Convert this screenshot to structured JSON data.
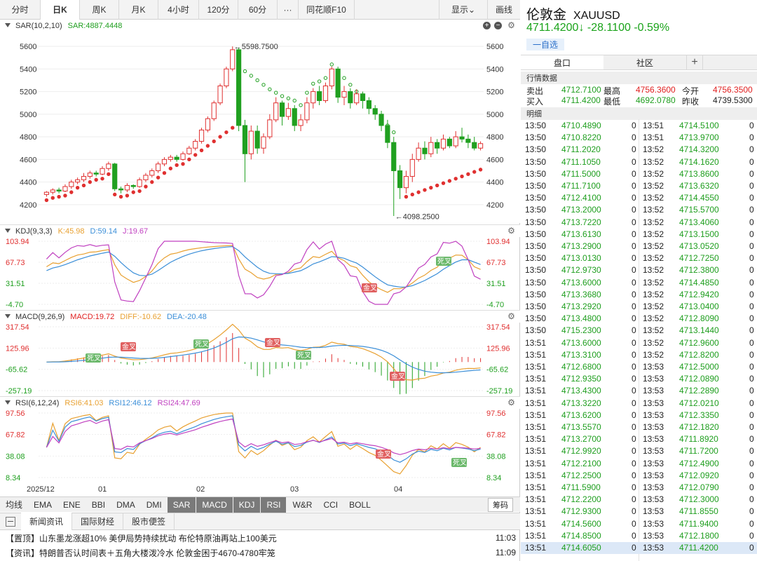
{
  "toolbar": {
    "tabs": [
      "分时",
      "日K",
      "周K",
      "月K",
      "4小时",
      "120分",
      "60分",
      "···",
      "同花顺F10"
    ],
    "active": "日K",
    "display_label": "显示",
    "draw_label": "画线"
  },
  "sar_panel": {
    "name": "SAR(10,2,10)",
    "value": "SAR:4887.4448",
    "y_ticks": [
      "5600",
      "5400",
      "5200",
      "5000",
      "4800",
      "4600",
      "4400",
      "4200"
    ],
    "high_label": "5598.7500",
    "low_label": "4098.2500"
  },
  "kdj_panel": {
    "name": "KDJ(9,3,3)",
    "k": "K:45.98",
    "d": "D:59.14",
    "j": "J:19.67",
    "y_ticks": [
      "103.94",
      "67.73",
      "31.51",
      "-4.70"
    ],
    "markers": [
      "死叉",
      "金叉"
    ]
  },
  "macd_panel": {
    "name": "MACD(9,26,9)",
    "macd": "MACD:19.72",
    "diff": "DIFF:-10.62",
    "dea": "DEA:-20.48",
    "y_ticks": [
      "317.54",
      "125.96",
      "-65.62",
      "-257.19"
    ],
    "markers": [
      "金叉",
      "死叉"
    ]
  },
  "rsi_panel": {
    "name": "RSI(6,12,24)",
    "rsi6": "RSI6:41.03",
    "rsi12": "RSI12:46.12",
    "rsi24": "RSI24:47.69",
    "y_ticks": [
      "97.56",
      "67.82",
      "38.08",
      "8.34"
    ],
    "markers": [
      "金叉",
      "死叉"
    ]
  },
  "x_axis": [
    "2025/12",
    "01",
    "02",
    "03",
    "04"
  ],
  "indicators": {
    "items": [
      "均线",
      "EMA",
      "ENE",
      "BBI",
      "DMA",
      "DMI",
      "SAR",
      "MACD",
      "KDJ",
      "RSI",
      "W&R",
      "CCI",
      "BOLL"
    ],
    "active": [
      "SAR",
      "MACD",
      "KDJ",
      "RSI"
    ],
    "chip": "筹码"
  },
  "news": {
    "tabs": [
      "新闻资讯",
      "国际财经",
      "股市便签"
    ],
    "items": [
      {
        "tag": "【置顶】",
        "text": "山东墨龙涨超10% 美伊局势持续扰动 布伦特原油再站上100美元",
        "time": "11:03"
      },
      {
        "tag": "【资讯】",
        "text": "特朗普否认时间表＋五角大楼泼冷水 伦敦金困于4670-4780牢笼",
        "time": "11:09"
      }
    ]
  },
  "instrument": {
    "name": "伦敦金",
    "symbol": "XAUUSD",
    "price": "4711.4200",
    "arrow": "↓",
    "change": "-28.1100",
    "change_pct": "-0.59%",
    "add_label": "一自选"
  },
  "right_tabs": [
    "盘口",
    "社区"
  ],
  "market": {
    "title": "行情数据",
    "rows": [
      {
        "l1": "卖出",
        "v1": "4712.7100",
        "l2": "最高",
        "v2": "4756.3600",
        "l3": "今开",
        "v3": "4756.3500"
      },
      {
        "l1": "买入",
        "v1": "4711.4200",
        "l2": "最低",
        "v2": "4692.0780",
        "l3": "昨收",
        "v3": "4739.5300"
      }
    ]
  },
  "ticks": {
    "title": "明细",
    "left": [
      [
        "13:50",
        "4710.4890",
        "0"
      ],
      [
        "13:50",
        "4710.8220",
        "0"
      ],
      [
        "13:50",
        "4711.2020",
        "0"
      ],
      [
        "13:50",
        "4711.1050",
        "0"
      ],
      [
        "13:50",
        "4711.5000",
        "0"
      ],
      [
        "13:50",
        "4711.7100",
        "0"
      ],
      [
        "13:50",
        "4712.4100",
        "0"
      ],
      [
        "13:50",
        "4713.2000",
        "0"
      ],
      [
        "13:50",
        "4713.7220",
        "0"
      ],
      [
        "13:50",
        "4713.6130",
        "0"
      ],
      [
        "13:50",
        "4713.2900",
        "0"
      ],
      [
        "13:50",
        "4713.0130",
        "0"
      ],
      [
        "13:50",
        "4712.9730",
        "0"
      ],
      [
        "13:50",
        "4713.6000",
        "0"
      ],
      [
        "13:50",
        "4713.3680",
        "0"
      ],
      [
        "13:50",
        "4713.2920",
        "0"
      ],
      [
        "13:50",
        "4713.4800",
        "0"
      ],
      [
        "13:50",
        "4715.2300",
        "0"
      ],
      [
        "13:51",
        "4713.6000",
        "0"
      ],
      [
        "13:51",
        "4713.3100",
        "0"
      ],
      [
        "13:51",
        "4712.6800",
        "0"
      ],
      [
        "13:51",
        "4712.9350",
        "0"
      ],
      [
        "13:51",
        "4713.4300",
        "0"
      ],
      [
        "13:51",
        "4713.3220",
        "0"
      ],
      [
        "13:51",
        "4713.6200",
        "0"
      ],
      [
        "13:51",
        "4713.5570",
        "0"
      ],
      [
        "13:51",
        "4713.2700",
        "0"
      ],
      [
        "13:51",
        "4712.9920",
        "0"
      ],
      [
        "13:51",
        "4712.2100",
        "0"
      ],
      [
        "13:51",
        "4712.2500",
        "0"
      ],
      [
        "13:51",
        "4711.5900",
        "0"
      ],
      [
        "13:51",
        "4712.2200",
        "0"
      ],
      [
        "13:51",
        "4712.9300",
        "0"
      ],
      [
        "13:51",
        "4714.5600",
        "0"
      ],
      [
        "13:51",
        "4714.8500",
        "0"
      ],
      [
        "13:51",
        "4714.6050",
        "0"
      ]
    ],
    "right": [
      [
        "13:51",
        "4714.5100",
        "0"
      ],
      [
        "13:51",
        "4713.9700",
        "0"
      ],
      [
        "13:52",
        "4714.3200",
        "0"
      ],
      [
        "13:52",
        "4714.1620",
        "0"
      ],
      [
        "13:52",
        "4713.8600",
        "0"
      ],
      [
        "13:52",
        "4713.6320",
        "0"
      ],
      [
        "13:52",
        "4714.4550",
        "0"
      ],
      [
        "13:52",
        "4715.5700",
        "0"
      ],
      [
        "13:52",
        "4713.4060",
        "0"
      ],
      [
        "13:52",
        "4713.1500",
        "0"
      ],
      [
        "13:52",
        "4713.0520",
        "0"
      ],
      [
        "13:52",
        "4712.7250",
        "0"
      ],
      [
        "13:52",
        "4712.3800",
        "0"
      ],
      [
        "13:52",
        "4714.4850",
        "0"
      ],
      [
        "13:52",
        "4712.9420",
        "0"
      ],
      [
        "13:52",
        "4713.0400",
        "0"
      ],
      [
        "13:52",
        "4712.8090",
        "0"
      ],
      [
        "13:52",
        "4713.1440",
        "0"
      ],
      [
        "13:52",
        "4712.9600",
        "0"
      ],
      [
        "13:52",
        "4712.8200",
        "0"
      ],
      [
        "13:53",
        "4712.5000",
        "0"
      ],
      [
        "13:53",
        "4712.0890",
        "0"
      ],
      [
        "13:53",
        "4712.2890",
        "0"
      ],
      [
        "13:53",
        "4712.0210",
        "0"
      ],
      [
        "13:53",
        "4712.3350",
        "0"
      ],
      [
        "13:53",
        "4712.1820",
        "0"
      ],
      [
        "13:53",
        "4711.8920",
        "0"
      ],
      [
        "13:53",
        "4711.7200",
        "0"
      ],
      [
        "13:53",
        "4712.4900",
        "0"
      ],
      [
        "13:53",
        "4712.0920",
        "0"
      ],
      [
        "13:53",
        "4712.0790",
        "0"
      ],
      [
        "13:53",
        "4712.3000",
        "0"
      ],
      [
        "13:53",
        "4711.8550",
        "0"
      ],
      [
        "13:53",
        "4711.9400",
        "0"
      ],
      [
        "13:53",
        "4712.1800",
        "0"
      ],
      [
        "13:53",
        "4711.4200",
        "0"
      ]
    ]
  },
  "chart_data": {
    "type": "candlestick",
    "y_range": [
      4100,
      5650
    ],
    "candles": [
      [
        4290,
        4310,
        4270,
        4320
      ],
      [
        4310,
        4330,
        4290,
        4345
      ],
      [
        4330,
        4320,
        4300,
        4350
      ],
      [
        4320,
        4360,
        4310,
        4380
      ],
      [
        4360,
        4400,
        4340,
        4420
      ],
      [
        4400,
        4420,
        4380,
        4440
      ],
      [
        4420,
        4450,
        4400,
        4480
      ],
      [
        4450,
        4480,
        4430,
        4500
      ],
      [
        4480,
        4470,
        4450,
        4500
      ],
      [
        4470,
        4520,
        4460,
        4540
      ],
      [
        4520,
        4560,
        4500,
        4580
      ],
      [
        4560,
        4340,
        4320,
        4570
      ],
      [
        4340,
        4330,
        4300,
        4360
      ],
      [
        4330,
        4370,
        4310,
        4390
      ],
      [
        4370,
        4360,
        4340,
        4380
      ],
      [
        4360,
        4420,
        4350,
        4440
      ],
      [
        4420,
        4460,
        4400,
        4480
      ],
      [
        4460,
        4500,
        4440,
        4520
      ],
      [
        4500,
        4560,
        4480,
        4580
      ],
      [
        4560,
        4600,
        4540,
        4620
      ],
      [
        4600,
        4620,
        4580,
        4640
      ],
      [
        4620,
        4600,
        4580,
        4640
      ],
      [
        4600,
        4650,
        4590,
        4670
      ],
      [
        4650,
        4700,
        4640,
        4720
      ],
      [
        4700,
        4760,
        4680,
        4780
      ],
      [
        4760,
        4860,
        4740,
        4880
      ],
      [
        4860,
        4960,
        4840,
        4980
      ],
      [
        4960,
        5100,
        4940,
        5120
      ],
      [
        5100,
        5250,
        5080,
        5270
      ],
      [
        5250,
        5400,
        5230,
        5420
      ],
      [
        5400,
        5570,
        5380,
        5599
      ],
      [
        5570,
        4900,
        4850,
        5590
      ],
      [
        4900,
        4650,
        4400,
        4950
      ],
      [
        4650,
        4850,
        4600,
        4900
      ],
      [
        4850,
        4700,
        4650,
        4900
      ],
      [
        4700,
        4800,
        4650,
        4830
      ],
      [
        4800,
        4950,
        4780,
        5000
      ],
      [
        4950,
        5100,
        4930,
        5150
      ],
      [
        5100,
        4980,
        4900,
        5120
      ],
      [
        4980,
        5050,
        4950,
        5100
      ],
      [
        5050,
        4900,
        4850,
        5080
      ],
      [
        4900,
        4950,
        4850,
        5000
      ],
      [
        4950,
        5100,
        4920,
        5150
      ],
      [
        5100,
        5200,
        5050,
        5230
      ],
      [
        5200,
        5120,
        5080,
        5250
      ],
      [
        5120,
        5250,
        5100,
        5280
      ],
      [
        5250,
        5400,
        5220,
        5420
      ],
      [
        5400,
        5150,
        5100,
        5420
      ],
      [
        5150,
        5200,
        5080,
        5250
      ],
      [
        5200,
        5100,
        5050,
        5230
      ],
      [
        5100,
        5180,
        5080,
        5220
      ],
      [
        5180,
        5120,
        5050,
        5200
      ],
      [
        5120,
        5050,
        5000,
        5150
      ],
      [
        5050,
        5000,
        4950,
        5080
      ],
      [
        5000,
        4900,
        4850,
        5030
      ],
      [
        4900,
        4750,
        4700,
        4950
      ],
      [
        4750,
        4500,
        4100,
        4800
      ],
      [
        4500,
        4350,
        4250,
        4550
      ],
      [
        4350,
        4450,
        4300,
        4500
      ],
      [
        4450,
        4600,
        4400,
        4650
      ],
      [
        4600,
        4700,
        4580,
        4750
      ],
      [
        4700,
        4650,
        4600,
        4760
      ],
      [
        4650,
        4750,
        4620,
        4800
      ],
      [
        4750,
        4700,
        4650,
        4780
      ],
      [
        4700,
        4780,
        4680,
        4820
      ],
      [
        4780,
        4720,
        4700,
        4800
      ],
      [
        4720,
        4800,
        4700,
        4850
      ],
      [
        4800,
        4780,
        4750,
        4880
      ],
      [
        4780,
        4750,
        4700,
        4820
      ],
      [
        4750,
        4700,
        4680,
        4800
      ],
      [
        4700,
        4740,
        4680,
        4760
      ]
    ]
  }
}
